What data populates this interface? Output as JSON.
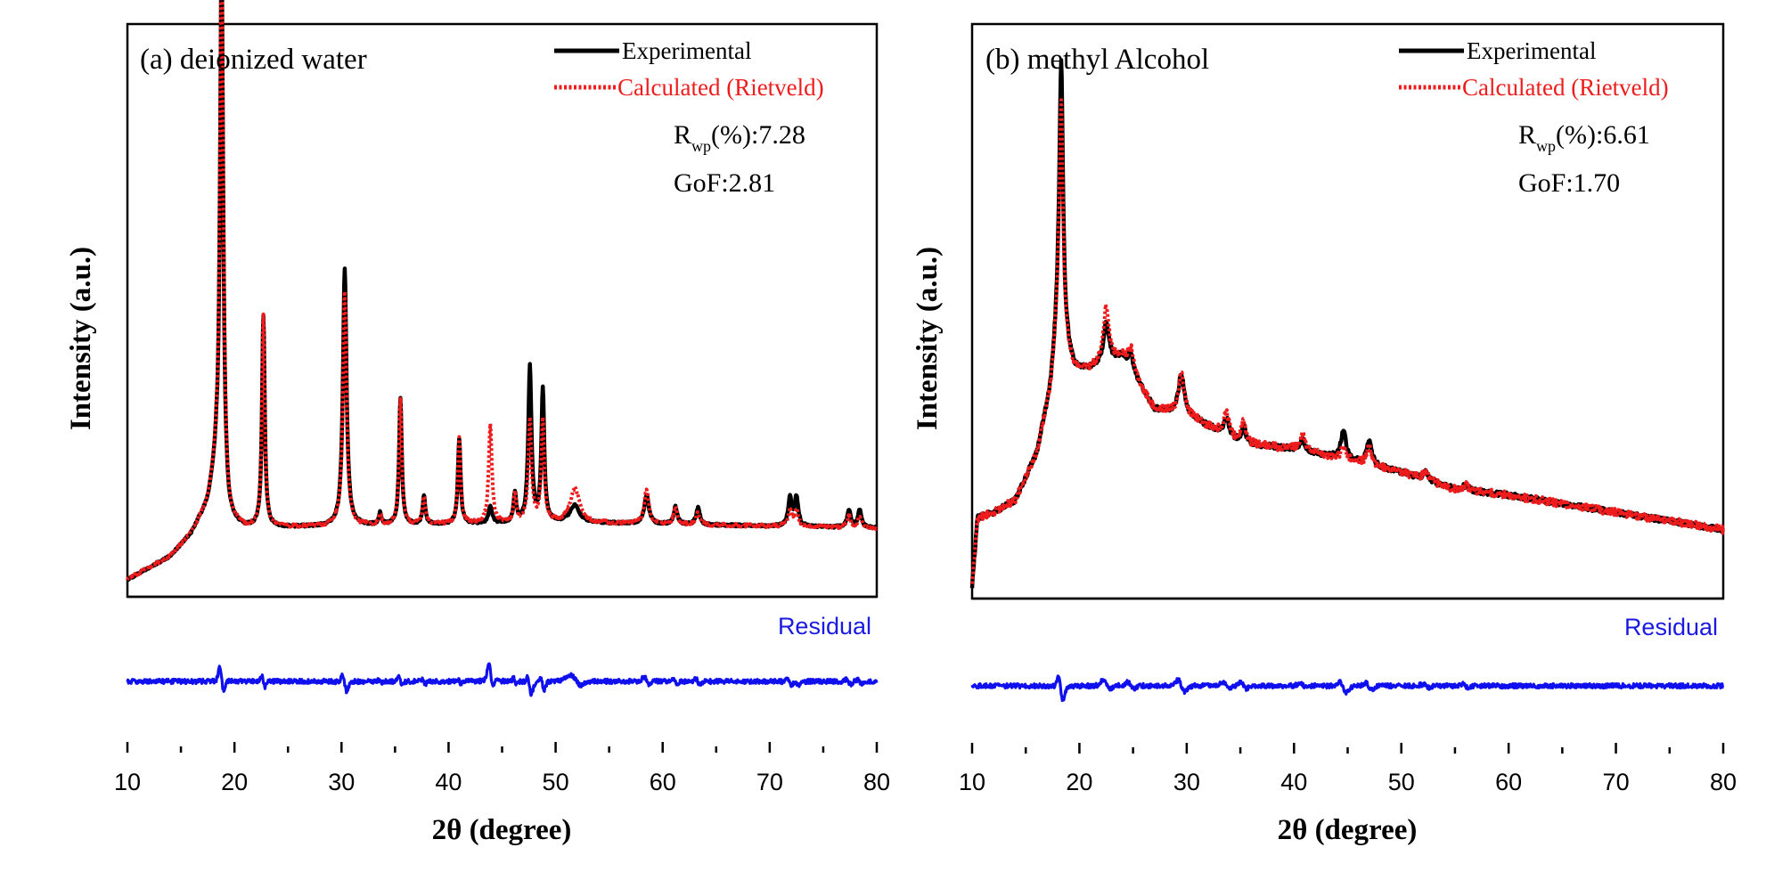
{
  "figure": {
    "x_label": "2θ (degree)",
    "y_label": "Intensity (a.u.)"
  },
  "chart_data": [
    {
      "type": "line",
      "title": "(a) deionized water",
      "xlabel": "2θ (degree)",
      "ylabel": "Intensity (a.u.)",
      "xlim": [
        10,
        80
      ],
      "x_ticks": [
        "10",
        "20",
        "30",
        "40",
        "50",
        "60",
        "70",
        "80"
      ],
      "legend_position": "top-right",
      "legend": [
        "Experimental",
        "Calculated (Rietveld)"
      ],
      "stats": {
        "rwp_symbol": "R",
        "rwp_sub": "wp",
        "rwp_text": "(%):7.28",
        "gof": "GoF:2.81"
      },
      "residual_label": "Residual",
      "baseline": [
        [
          10,
          0.03
        ],
        [
          14,
          0.07
        ],
        [
          16,
          0.11
        ],
        [
          17.5,
          0.16
        ],
        [
          18.3,
          0.22
        ],
        [
          19.5,
          0.13
        ],
        [
          21,
          0.12
        ],
        [
          50,
          0.13
        ],
        [
          80,
          0.12
        ]
      ],
      "peaks": [
        {
          "x": 18.8,
          "exp": 0.93,
          "calc": 0.98,
          "w": 0.18,
          "res": 0.7
        },
        {
          "x": 22.7,
          "exp": 0.37,
          "calc": 0.37,
          "w": 0.15,
          "res": 0.35
        },
        {
          "x": 30.3,
          "exp": 0.45,
          "calc": 0.41,
          "w": 0.2,
          "res": 0.45
        },
        {
          "x": 33.6,
          "exp": 0.02,
          "calc": 0.02,
          "w": 0.15,
          "res": 0.1
        },
        {
          "x": 35.5,
          "exp": 0.22,
          "calc": 0.22,
          "w": 0.15,
          "res": 0.3
        },
        {
          "x": 37.7,
          "exp": 0.05,
          "calc": 0.05,
          "w": 0.15,
          "res": 0.15
        },
        {
          "x": 41.0,
          "exp": 0.15,
          "calc": 0.15,
          "w": 0.15,
          "res": 0.15
        },
        {
          "x": 43.9,
          "exp": 0.03,
          "calc": 0.17,
          "w": 0.18,
          "res": 0.7
        },
        {
          "x": 46.2,
          "exp": 0.05,
          "calc": 0.05,
          "w": 0.15,
          "res": 0.2
        },
        {
          "x": 47.6,
          "exp": 0.27,
          "calc": 0.18,
          "w": 0.18,
          "res": 0.5
        },
        {
          "x": 48.8,
          "exp": 0.23,
          "calc": 0.18,
          "w": 0.16,
          "res": 0.4
        },
        {
          "x": 51.8,
          "exp": 0.03,
          "calc": 0.06,
          "w": 0.5,
          "res": 0.3
        },
        {
          "x": 58.5,
          "exp": 0.05,
          "calc": 0.06,
          "w": 0.25,
          "res": 0.25
        },
        {
          "x": 61.2,
          "exp": 0.03,
          "calc": 0.03,
          "w": 0.2,
          "res": 0.15
        },
        {
          "x": 63.3,
          "exp": 0.03,
          "calc": 0.02,
          "w": 0.2,
          "res": 0.2
        },
        {
          "x": 71.9,
          "exp": 0.05,
          "calc": 0.03,
          "w": 0.2,
          "res": 0.25
        },
        {
          "x": 72.5,
          "exp": 0.05,
          "calc": 0.03,
          "w": 0.2,
          "res": 0.15
        },
        {
          "x": 77.4,
          "exp": 0.03,
          "calc": 0.02,
          "w": 0.2,
          "res": 0.15
        },
        {
          "x": 78.4,
          "exp": 0.03,
          "calc": 0.02,
          "w": 0.2,
          "res": 0.15
        }
      ]
    },
    {
      "type": "line",
      "title": "(b) methyl Alcohol",
      "xlabel": "2θ (degree)",
      "ylabel": "Intensity (a.u.)",
      "xlim": [
        10,
        80
      ],
      "x_ticks": [
        "10",
        "20",
        "30",
        "40",
        "50",
        "60",
        "70",
        "80"
      ],
      "legend_position": "top-right",
      "legend": [
        "Experimental",
        "Calculated (Rietveld)"
      ],
      "stats": {
        "rwp_symbol": "R",
        "rwp_sub": "wp",
        "rwp_text": "(%):6.61",
        "gof": "GoF:1.70"
      },
      "residual_label": "Residual",
      "baseline": [
        [
          10,
          0.02
        ],
        [
          10.5,
          0.14
        ],
        [
          12,
          0.15
        ],
        [
          14,
          0.17
        ],
        [
          16,
          0.25
        ],
        [
          17.3,
          0.36
        ],
        [
          18.0,
          0.48
        ],
        [
          19.5,
          0.4
        ],
        [
          21,
          0.4
        ],
        [
          24,
          0.42
        ],
        [
          27,
          0.33
        ],
        [
          30,
          0.32
        ],
        [
          35,
          0.27
        ],
        [
          40,
          0.26
        ],
        [
          45,
          0.24
        ],
        [
          50,
          0.22
        ],
        [
          55,
          0.19
        ],
        [
          60,
          0.18
        ],
        [
          70,
          0.15
        ],
        [
          80,
          0.12
        ]
      ],
      "peaks": [
        {
          "x": 18.3,
          "exp": 0.47,
          "calc": 0.4,
          "w": 0.2,
          "res": 0.8
        },
        {
          "x": 22.5,
          "exp": 0.07,
          "calc": 0.1,
          "w": 0.3,
          "res": 0.3
        },
        {
          "x": 24.8,
          "exp": 0.03,
          "calc": 0.04,
          "w": 0.3,
          "res": 0.2
        },
        {
          "x": 29.5,
          "exp": 0.07,
          "calc": 0.07,
          "w": 0.3,
          "res": 0.35
        },
        {
          "x": 33.7,
          "exp": 0.03,
          "calc": 0.04,
          "w": 0.3,
          "res": 0.2
        },
        {
          "x": 35.3,
          "exp": 0.03,
          "calc": 0.04,
          "w": 0.25,
          "res": 0.2
        },
        {
          "x": 40.8,
          "exp": 0.02,
          "calc": 0.03,
          "w": 0.3,
          "res": 0.1
        },
        {
          "x": 44.6,
          "exp": 0.05,
          "calc": 0.02,
          "w": 0.3,
          "res": 0.3
        },
        {
          "x": 47.0,
          "exp": 0.04,
          "calc": 0.03,
          "w": 0.3,
          "res": 0.2
        },
        {
          "x": 52.3,
          "exp": 0.015,
          "calc": 0.015,
          "w": 0.3,
          "res": 0.1
        },
        {
          "x": 56.0,
          "exp": 0.01,
          "calc": 0.01,
          "w": 0.3,
          "res": 0.1
        }
      ]
    }
  ]
}
